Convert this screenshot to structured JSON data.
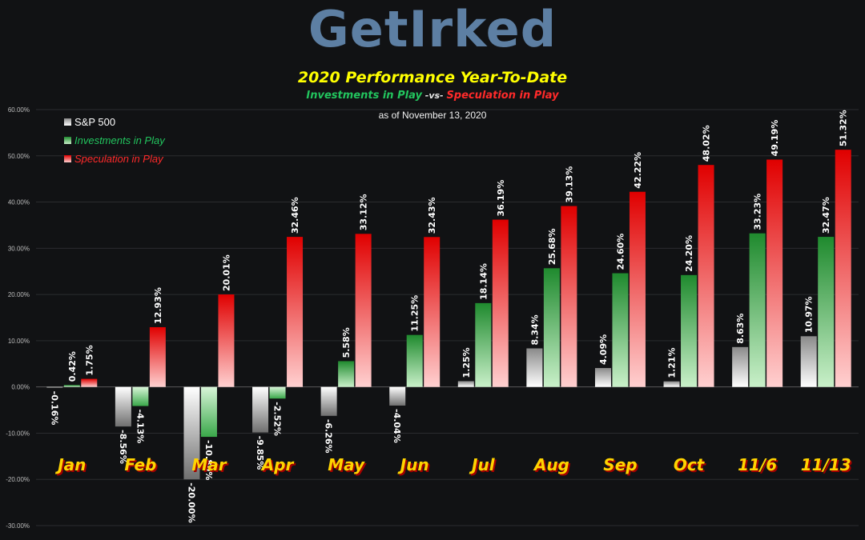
{
  "header": {
    "logo_text": "GetIrked",
    "title": "2020 Performance Year-To-Date",
    "subtitle_investments": "Investments in Play",
    "subtitle_vs": " -vs- ",
    "subtitle_speculation": "Speculation in Play",
    "as_of": "as of November 13, 2020"
  },
  "colors": {
    "sp500": "#9a9a9a",
    "investments": "#2ea043",
    "speculation": "#e00000",
    "category_label": "#ffd400",
    "background": "#111214"
  },
  "chart_data": {
    "type": "bar",
    "categories": [
      "Jan",
      "Feb",
      "Mar",
      "Apr",
      "May",
      "Jun",
      "Jul",
      "Aug",
      "Sep",
      "Oct",
      "11/6",
      "11/13"
    ],
    "series": [
      {
        "name": "S&P 500",
        "values": [
          -0.16,
          -8.56,
          -20.0,
          -9.85,
          -6.26,
          -4.04,
          1.25,
          8.34,
          4.09,
          1.21,
          8.63,
          10.97
        ],
        "labels": [
          "-0.16%",
          "-8.56%",
          "-20.00%",
          "-9.85%",
          "-6.26%",
          "-4.04%",
          "1.25%",
          "8.34%",
          "4.09%",
          "1.21%",
          "8.63%",
          "10.97%"
        ]
      },
      {
        "name": "Investments in Play",
        "values": [
          0.42,
          -4.13,
          -10.8,
          -2.52,
          5.58,
          11.25,
          18.14,
          25.68,
          24.6,
          24.2,
          33.23,
          32.47
        ],
        "labels": [
          "0.42%",
          "-4.13%",
          "-10.80%",
          "-2.52%",
          "5.58%",
          "11.25%",
          "18.14%",
          "25.68%",
          "24.60%",
          "24.20%",
          "33.23%",
          "32.47%"
        ]
      },
      {
        "name": "Speculation in Play",
        "values": [
          1.75,
          12.93,
          20.01,
          32.46,
          33.12,
          32.43,
          36.19,
          39.13,
          42.22,
          48.02,
          49.19,
          51.32
        ],
        "labels": [
          "1.75%",
          "12.93%",
          "20.01%",
          "32.46%",
          "33.12%",
          "32.43%",
          "36.19%",
          "39.13%",
          "42.22%",
          "48.02%",
          "49.19%",
          "51.32%"
        ]
      }
    ],
    "ylim": [
      -30,
      60
    ],
    "y_ticks": [
      -30,
      -20,
      -10,
      0,
      10,
      20,
      30,
      40,
      50,
      60
    ],
    "y_tick_labels": [
      "-30.00%",
      "-20.00%",
      "-10.00%",
      "0.00%",
      "10.00%",
      "20.00%",
      "30.00%",
      "40.00%",
      "50.00%",
      "60.00%"
    ],
    "grid": true,
    "legend_position": "top-left",
    "legend": [
      "S&P 500",
      "Investments in Play",
      "Speculation in Play"
    ]
  }
}
